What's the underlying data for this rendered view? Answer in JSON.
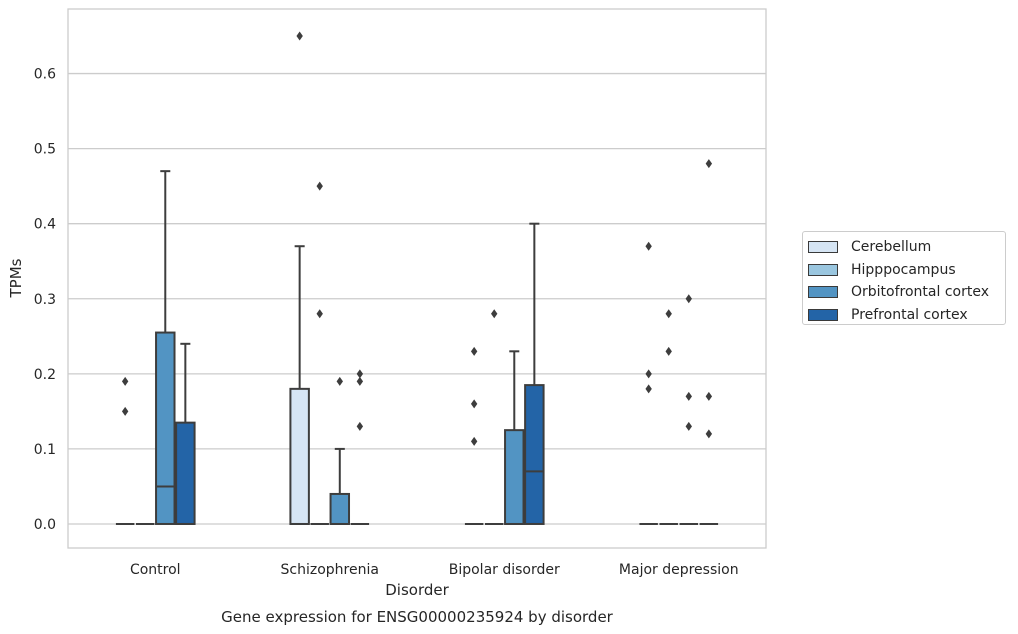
{
  "chart_data": {
    "type": "box",
    "title": "Gene expression for ENSG00000235924 by disorder",
    "xlabel": "Disorder",
    "ylabel": "TPMs",
    "ylim": [
      -0.032,
      0.686
    ],
    "yticks": [
      0.0,
      0.1,
      0.2,
      0.3,
      0.4,
      0.5,
      0.6
    ],
    "ytick_labels": [
      "0.0",
      "0.1",
      "0.2",
      "0.3",
      "0.4",
      "0.5",
      "0.6"
    ],
    "categories": [
      "Control",
      "Schizophrenia",
      "Bipolar disorder",
      "Major depression"
    ],
    "grid": "horizontal",
    "legend_position": "right",
    "series": [
      {
        "name": "Cerebellum",
        "color": "#d6e5f4",
        "boxes": [
          {
            "q1": 0.0,
            "median": 0.0,
            "q3": 0.0,
            "whislo": 0.0,
            "whishi": 0.0,
            "fliers": [
              0.15,
              0.19
            ]
          },
          {
            "q1": 0.0,
            "median": 0.0,
            "q3": 0.18,
            "whislo": 0.0,
            "whishi": 0.37,
            "fliers": [
              0.65
            ]
          },
          {
            "q1": 0.0,
            "median": 0.0,
            "q3": 0.0,
            "whislo": 0.0,
            "whishi": 0.0,
            "fliers": [
              0.11,
              0.16,
              0.23
            ]
          },
          {
            "q1": 0.0,
            "median": 0.0,
            "q3": 0.0,
            "whislo": 0.0,
            "whishi": 0.0,
            "fliers": [
              0.18,
              0.2,
              0.37
            ]
          }
        ]
      },
      {
        "name": "Hipppocampus",
        "color": "#9ac6df",
        "boxes": [
          {
            "q1": 0.0,
            "median": 0.0,
            "q3": 0.0,
            "whislo": 0.0,
            "whishi": 0.0,
            "fliers": []
          },
          {
            "q1": 0.0,
            "median": 0.0,
            "q3": 0.0,
            "whislo": 0.0,
            "whishi": 0.0,
            "fliers": [
              0.28,
              0.45
            ]
          },
          {
            "q1": 0.0,
            "median": 0.0,
            "q3": 0.0,
            "whislo": 0.0,
            "whishi": 0.0,
            "fliers": [
              0.28
            ]
          },
          {
            "q1": 0.0,
            "median": 0.0,
            "q3": 0.0,
            "whislo": 0.0,
            "whishi": 0.0,
            "fliers": [
              0.23,
              0.28
            ]
          }
        ]
      },
      {
        "name": "Orbitofrontal cortex",
        "color": "#5294c3",
        "boxes": [
          {
            "q1": 0.0,
            "median": 0.05,
            "q3": 0.255,
            "whislo": 0.0,
            "whishi": 0.47,
            "fliers": []
          },
          {
            "q1": 0.0,
            "median": 0.0,
            "q3": 0.04,
            "whislo": 0.0,
            "whishi": 0.1,
            "fliers": [
              0.19
            ]
          },
          {
            "q1": 0.0,
            "median": 0.0,
            "q3": 0.125,
            "whislo": 0.0,
            "whishi": 0.23,
            "fliers": []
          },
          {
            "q1": 0.0,
            "median": 0.0,
            "q3": 0.0,
            "whislo": 0.0,
            "whishi": 0.0,
            "fliers": [
              0.13,
              0.17,
              0.3
            ]
          }
        ]
      },
      {
        "name": "Prefrontal cortex",
        "color": "#2364a7",
        "boxes": [
          {
            "q1": 0.0,
            "median": 0.0,
            "q3": 0.135,
            "whislo": 0.0,
            "whishi": 0.24,
            "fliers": []
          },
          {
            "q1": 0.0,
            "median": 0.0,
            "q3": 0.0,
            "whislo": 0.0,
            "whishi": 0.0,
            "fliers": [
              0.13,
              0.19,
              0.2
            ]
          },
          {
            "q1": 0.0,
            "median": 0.07,
            "q3": 0.185,
            "whislo": 0.0,
            "whishi": 0.4,
            "fliers": []
          },
          {
            "q1": 0.0,
            "median": 0.0,
            "q3": 0.0,
            "whislo": 0.0,
            "whishi": 0.0,
            "fliers": [
              0.12,
              0.17,
              0.48
            ]
          }
        ]
      }
    ]
  }
}
